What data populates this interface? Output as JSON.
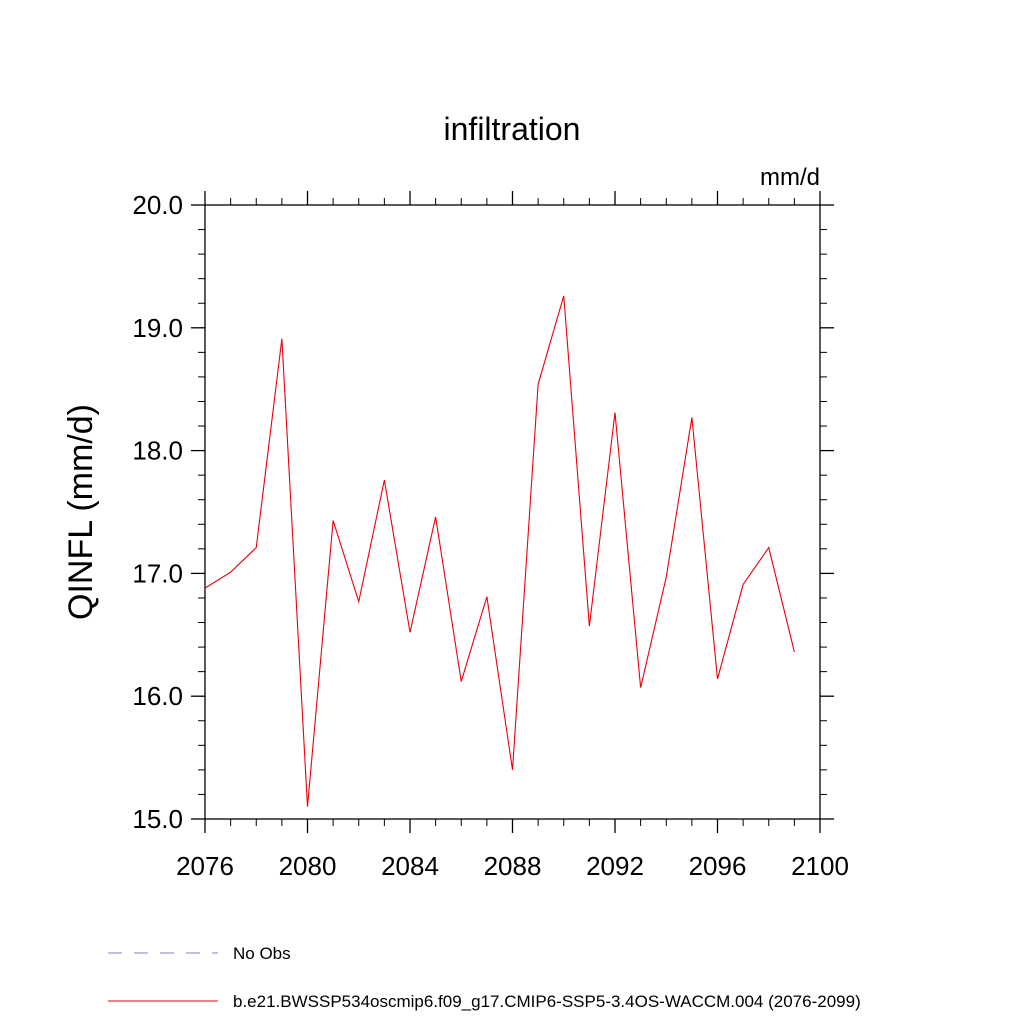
{
  "chart_data": {
    "type": "line",
    "title": "infiltration",
    "units_label": "mm/d",
    "ylabel": "QINFL  (mm/d)",
    "xlabel": "",
    "xlim": [
      2076,
      2100
    ],
    "ylim": [
      15.0,
      20.0
    ],
    "xticks": [
      2076,
      2080,
      2084,
      2088,
      2092,
      2096,
      2100
    ],
    "xtick_labels": [
      "2076",
      "2080",
      "2084",
      "2088",
      "2092",
      "2096",
      "2100"
    ],
    "yticks": [
      15.0,
      16.0,
      17.0,
      18.0,
      19.0,
      20.0
    ],
    "ytick_labels": [
      "15.0",
      "16.0",
      "17.0",
      "18.0",
      "19.0",
      "20.0"
    ],
    "x": [
      2076,
      2077,
      2078,
      2079,
      2080,
      2081,
      2082,
      2083,
      2084,
      2085,
      2086,
      2087,
      2088,
      2089,
      2090,
      2091,
      2092,
      2093,
      2094,
      2095,
      2096,
      2097,
      2098,
      2099
    ],
    "series": [
      {
        "name": "b.e21.BWSSP534oscmip6.f09_g17.CMIP6-SSP5-3.4OS-WACCM.004 (2076-2099)",
        "color": "#e8000b",
        "dash": "solid",
        "values": [
          16.88,
          17.01,
          17.21,
          18.91,
          15.1,
          17.43,
          16.77,
          17.76,
          16.52,
          17.46,
          16.12,
          16.81,
          15.4,
          18.54,
          19.26,
          16.57,
          18.31,
          16.07,
          16.97,
          18.27,
          16.14,
          16.91,
          17.21,
          16.36
        ]
      }
    ],
    "legend": {
      "placement": "bottom",
      "entries": [
        {
          "label": "No Obs",
          "color": "#8080c0",
          "dash": "dashed"
        },
        {
          "label": "b.e21.BWSSP534oscmip6.f09_g17.CMIP6-SSP5-3.4OS-WACCM.004 (2076-2099)",
          "color": "#e8000b",
          "dash": "solid"
        }
      ]
    }
  }
}
